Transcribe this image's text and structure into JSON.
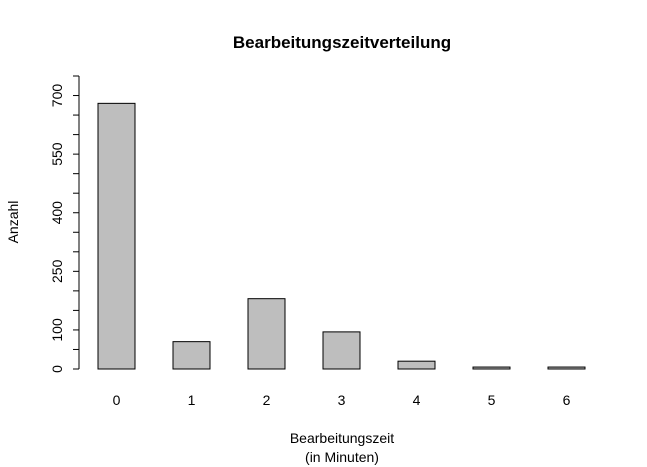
{
  "chart_data": {
    "type": "bar",
    "title": "Bearbeitungszeitverteilung",
    "xlabel_line1": "Bearbeitungszeit",
    "xlabel_line2": "(in Minuten)",
    "ylabel": "Anzahl",
    "categories": [
      "0",
      "1",
      "2",
      "3",
      "4",
      "5",
      "6"
    ],
    "values": [
      680,
      70,
      180,
      95,
      20,
      5,
      5
    ],
    "ylim": [
      0,
      750
    ],
    "yticks": [
      0,
      100,
      250,
      400,
      550,
      700
    ],
    "y_minor_ticks": [
      0,
      50,
      100,
      150,
      200,
      250,
      300,
      350,
      400,
      450,
      500,
      550,
      600,
      650,
      700,
      750
    ],
    "bar_color": "#bebebe",
    "grid": false,
    "legend": "none"
  }
}
